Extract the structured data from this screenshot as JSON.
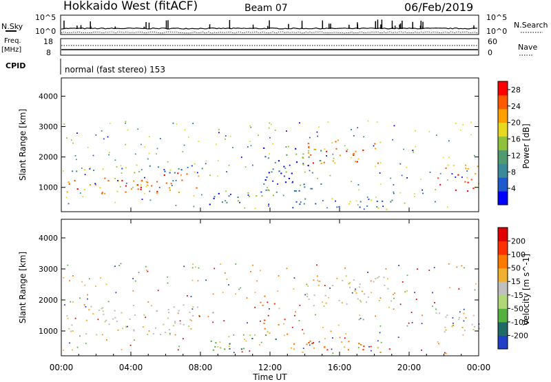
{
  "header": {
    "station": "Hokkaido West (fitACF)",
    "beam": "Beam 07",
    "date": "06/Feb/2019"
  },
  "noise_panel": {
    "left_label": "N.Sky",
    "right_label": "N.Search",
    "tick_top": "10^5",
    "tick_bottom": "10^0"
  },
  "freq_panel": {
    "left_label_1": "Freq.",
    "left_label_2": "[MHz]",
    "left_ticks": [
      "18",
      "8"
    ],
    "right_label": "Nave",
    "right_ticks": [
      "60",
      "0"
    ]
  },
  "cpid_panel": {
    "label": "CPID",
    "text": "normal (fast stereo) 153"
  },
  "x_axis": {
    "label": "Time UT",
    "ticks": [
      "00:00",
      "04:00",
      "08:00",
      "12:00",
      "16:00",
      "20:00",
      "00:00"
    ]
  },
  "chart_data": [
    {
      "type": "heatmap",
      "name": "power",
      "ylabel": "Slant Range [km]",
      "yticks": [
        1000,
        2000,
        3000,
        4000
      ],
      "ylim": [
        200,
        4600
      ],
      "xlim_hours": [
        0,
        24
      ],
      "colorbar": {
        "label": "Power [dB]",
        "ticks": [
          4,
          8,
          12,
          16,
          20,
          24,
          28
        ],
        "range": [
          0,
          30
        ],
        "colors": [
          "#0000ff",
          "#1e5acd",
          "#3a8a9a",
          "#4f9a6e",
          "#8fc23a",
          "#e8d820",
          "#ffa000",
          "#ff5a00",
          "#ff0000"
        ]
      },
      "regions": [
        {
          "t0": 0.0,
          "t1": 8.0,
          "r0": 800,
          "r1": 1500,
          "level": "high"
        },
        {
          "t0": 0.0,
          "t1": 8.2,
          "r0": 1500,
          "r1": 1800,
          "level": "mid"
        },
        {
          "t0": 8.5,
          "t1": 12.5,
          "r0": 400,
          "r1": 900,
          "level": "low"
        },
        {
          "t0": 11.5,
          "t1": 15.0,
          "r0": 900,
          "r1": 2400,
          "level": "low"
        },
        {
          "t0": 14.0,
          "t1": 18.5,
          "r0": 1800,
          "r1": 2600,
          "level": "high"
        },
        {
          "t0": 13.0,
          "t1": 20.0,
          "r0": 300,
          "r1": 700,
          "level": "mid"
        },
        {
          "t0": 21.5,
          "t1": 24.0,
          "r0": 900,
          "r1": 1800,
          "level": "high"
        }
      ]
    },
    {
      "type": "heatmap",
      "name": "velocity",
      "ylabel": "Slant Range [km]",
      "yticks": [
        1000,
        2000,
        3000,
        4000
      ],
      "ylim": [
        200,
        4600
      ],
      "xlim_hours": [
        0,
        24
      ],
      "colorbar": {
        "label": "Velocity [m s^-1]",
        "ticks": [
          200,
          100,
          50,
          15,
          -15,
          -50,
          -100,
          -200
        ],
        "colors": [
          "#2040c8",
          "#1e6a64",
          "#55b040",
          "#b0d878",
          "#c0c0c0",
          "#f0b030",
          "#ff7800",
          "#ff3000",
          "#e00000"
        ]
      },
      "regions": [
        {
          "t0": 0.0,
          "t1": 8.0,
          "r0": 900,
          "r1": 1900,
          "level": "grey"
        },
        {
          "t0": 8.5,
          "t1": 12.5,
          "r0": 400,
          "r1": 900,
          "level": "green"
        },
        {
          "t0": 11.3,
          "t1": 12.3,
          "r0": 1700,
          "r1": 2200,
          "level": "orange"
        },
        {
          "t0": 11.5,
          "t1": 13.0,
          "r0": 900,
          "r1": 1500,
          "level": "orange"
        },
        {
          "t0": 14.0,
          "t1": 19.0,
          "r0": 1800,
          "r1": 2800,
          "level": "grey"
        },
        {
          "t0": 13.0,
          "t1": 20.5,
          "r0": 300,
          "r1": 700,
          "level": "orange"
        },
        {
          "t0": 21.5,
          "t1": 24.0,
          "r0": 900,
          "r1": 1800,
          "level": "grey"
        }
      ]
    }
  ]
}
